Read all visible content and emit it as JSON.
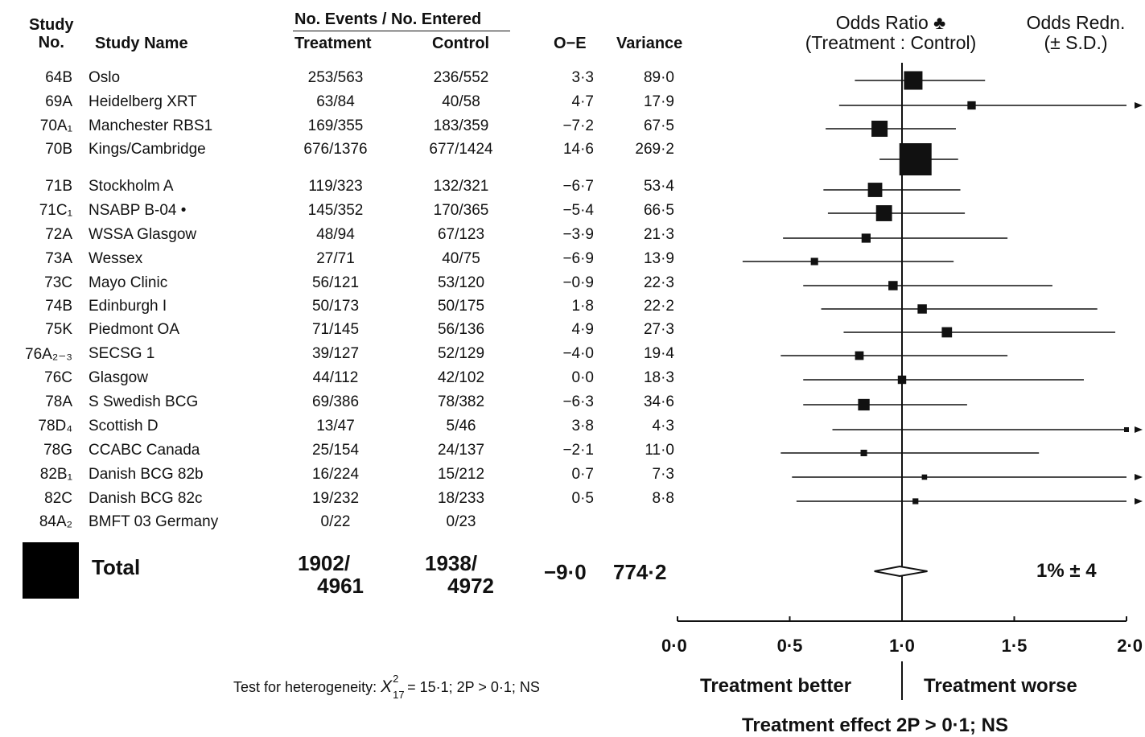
{
  "headers": {
    "study_no": "Study No.",
    "study_no_l1": "Study",
    "study_no_l2": "No.",
    "study_name": "Study Name",
    "events_group": "No. Events / No. Entered",
    "treatment": "Treatment",
    "control": "Control",
    "oe": "O−E",
    "variance": "Variance",
    "or_l1": "Odds Ratio ♣",
    "or_l2": "(Treatment : Control)",
    "redn_l1": "Odds Redn.",
    "redn_l2": "(± S.D.)"
  },
  "rows": [
    {
      "no": "64B",
      "name": "Oslo",
      "trt": "253/563",
      "ctl": "236/552",
      "oe": "3·3",
      "var": "89·0"
    },
    {
      "no": "69A",
      "name": "Heidelberg XRT",
      "trt": "63/84",
      "ctl": "40/58",
      "oe": "4·7",
      "var": "17·9"
    },
    {
      "no": "70A₁",
      "name": "Manchester RBS1",
      "trt": "169/355",
      "ctl": "183/359",
      "oe": "−7·2",
      "var": "67·5"
    },
    {
      "no": "70B",
      "name": "Kings/Cambridge",
      "trt": "676/1376",
      "ctl": "677/1424",
      "oe": "14·6",
      "var": "269·2"
    },
    {
      "no": "71B",
      "name": "Stockholm A",
      "trt": "119/323",
      "ctl": "132/321",
      "oe": "−6·7",
      "var": "53·4"
    },
    {
      "no": "71C₁",
      "name": "NSABP B-04 •",
      "trt": "145/352",
      "ctl": "170/365",
      "oe": "−5·4",
      "var": "66·5"
    },
    {
      "no": "72A",
      "name": "WSSA Glasgow",
      "trt": "48/94",
      "ctl": "67/123",
      "oe": "−3·9",
      "var": "21·3"
    },
    {
      "no": "73A",
      "name": "Wessex",
      "trt": "27/71",
      "ctl": "40/75",
      "oe": "−6·9",
      "var": "13·9"
    },
    {
      "no": "73C",
      "name": "Mayo Clinic",
      "trt": "56/121",
      "ctl": "53/120",
      "oe": "−0·9",
      "var": "22·3"
    },
    {
      "no": "74B",
      "name": "Edinburgh I",
      "trt": "50/173",
      "ctl": "50/175",
      "oe": "1·8",
      "var": "22·2"
    },
    {
      "no": "75K",
      "name": "Piedmont OA",
      "trt": "71/145",
      "ctl": "56/136",
      "oe": "4·9",
      "var": "27·3"
    },
    {
      "no": "76A₂₋₃",
      "name": "SECSG 1",
      "trt": "39/127",
      "ctl": "52/129",
      "oe": "−4·0",
      "var": "19·4"
    },
    {
      "no": "76C",
      "name": "Glasgow",
      "trt": "44/112",
      "ctl": "42/102",
      "oe": "0·0",
      "var": "18·3"
    },
    {
      "no": "78A",
      "name": "S Swedish BCG",
      "trt": "69/386",
      "ctl": "78/382",
      "oe": "−6·3",
      "var": "34·6"
    },
    {
      "no": "78D₄",
      "name": "Scottish D",
      "trt": "13/47",
      "ctl": "5/46",
      "oe": "3·8",
      "var": "4·3"
    },
    {
      "no": "78G",
      "name": "CCABC Canada",
      "trt": "25/154",
      "ctl": "24/137",
      "oe": "−2·1",
      "var": "11·0"
    },
    {
      "no": "82B₁",
      "name": "Danish BCG 82b",
      "trt": "16/224",
      "ctl": "15/212",
      "oe": "0·7",
      "var": "7·3"
    },
    {
      "no": "82C",
      "name": "Danish BCG 82c",
      "trt": "19/232",
      "ctl": "18/233",
      "oe": "0·5",
      "var": "8·8"
    },
    {
      "no": "84A₂",
      "name": "BMFT 03 Germany",
      "trt": "0/22",
      "ctl": "0/23",
      "oe": "",
      "var": ""
    }
  ],
  "total": {
    "label": "Total",
    "trt_l1": "1902/",
    "trt_l2": "4961",
    "ctl_l1": "1938/",
    "ctl_l2": "4972",
    "oe": "−9·0",
    "var": "774·2",
    "redn": "1% ± 4"
  },
  "footer": {
    "heterogeneity_prefix": "Test for heterogeneity: ",
    "chi_symbol": "X",
    "chi_sup": "2",
    "chi_sub": "17",
    "heterogeneity_rest": " = 15·1; 2P > 0·1; NS",
    "better": "Treatment better",
    "worse": "Treatment worse",
    "effect": "Treatment effect 2P > 0·1; NS"
  },
  "chart_data": {
    "type": "forest",
    "measure": "Odds Ratio (Treatment : Control)",
    "xlim": [
      0,
      2
    ],
    "x_ticks": [
      0,
      0.5,
      1.0,
      1.5,
      2.0
    ],
    "x_tick_labels": [
      "0·0",
      "0·5",
      "1·0",
      "1·5",
      "2·0"
    ],
    "reference_line": 1.0,
    "studies": [
      {
        "no": "64B",
        "or": 1.05,
        "lo": 0.79,
        "hi": 1.37,
        "box_weight": 89.0
      },
      {
        "no": "69A",
        "or": 1.31,
        "lo": 0.72,
        "hi": 2.0,
        "arrow": true,
        "box_weight": 17.9
      },
      {
        "no": "70A1",
        "or": 0.9,
        "lo": 0.66,
        "hi": 1.24,
        "box_weight": 67.5
      },
      {
        "no": "70B",
        "or": 1.06,
        "lo": 0.9,
        "hi": 1.25,
        "box_weight": 269.2
      },
      {
        "no": "71B",
        "or": 0.88,
        "lo": 0.65,
        "hi": 1.26,
        "box_weight": 53.4
      },
      {
        "no": "71C1",
        "or": 0.92,
        "lo": 0.67,
        "hi": 1.28,
        "box_weight": 66.5
      },
      {
        "no": "72A",
        "or": 0.84,
        "lo": 0.47,
        "hi": 1.47,
        "box_weight": 21.3
      },
      {
        "no": "73A",
        "or": 0.61,
        "lo": 0.29,
        "hi": 1.23,
        "box_weight": 13.9
      },
      {
        "no": "73C",
        "or": 0.96,
        "lo": 0.56,
        "hi": 1.67,
        "box_weight": 22.3
      },
      {
        "no": "74B",
        "or": 1.09,
        "lo": 0.64,
        "hi": 1.87,
        "box_weight": 22.2
      },
      {
        "no": "75K",
        "or": 1.2,
        "lo": 0.74,
        "hi": 1.95,
        "box_weight": 27.3
      },
      {
        "no": "76A2-3",
        "or": 0.81,
        "lo": 0.46,
        "hi": 1.47,
        "box_weight": 19.4
      },
      {
        "no": "76C",
        "or": 1.0,
        "lo": 0.56,
        "hi": 1.81,
        "box_weight": 18.3
      },
      {
        "no": "78A",
        "or": 0.83,
        "lo": 0.56,
        "hi": 1.29,
        "box_weight": 34.6
      },
      {
        "no": "78D4",
        "or": 2.0,
        "lo": 0.69,
        "hi": 2.0,
        "arrow": true,
        "box_weight": 4.3
      },
      {
        "no": "78G",
        "or": 0.83,
        "lo": 0.46,
        "hi": 1.61,
        "box_weight": 11.0
      },
      {
        "no": "82B1",
        "or": 1.1,
        "lo": 0.51,
        "hi": 2.0,
        "arrow": true,
        "box_weight": 7.3
      },
      {
        "no": "82C",
        "or": 1.06,
        "lo": 0.53,
        "hi": 2.0,
        "arrow": true,
        "box_weight": 8.8
      },
      {
        "no": "84A2",
        "or": null,
        "lo": null,
        "hi": null,
        "box_weight": 0
      }
    ],
    "total": {
      "or": 0.99,
      "lo": 0.92,
      "hi": 1.07
    },
    "axis_text": {
      "left": "Treatment better",
      "right": "Treatment worse"
    }
  }
}
